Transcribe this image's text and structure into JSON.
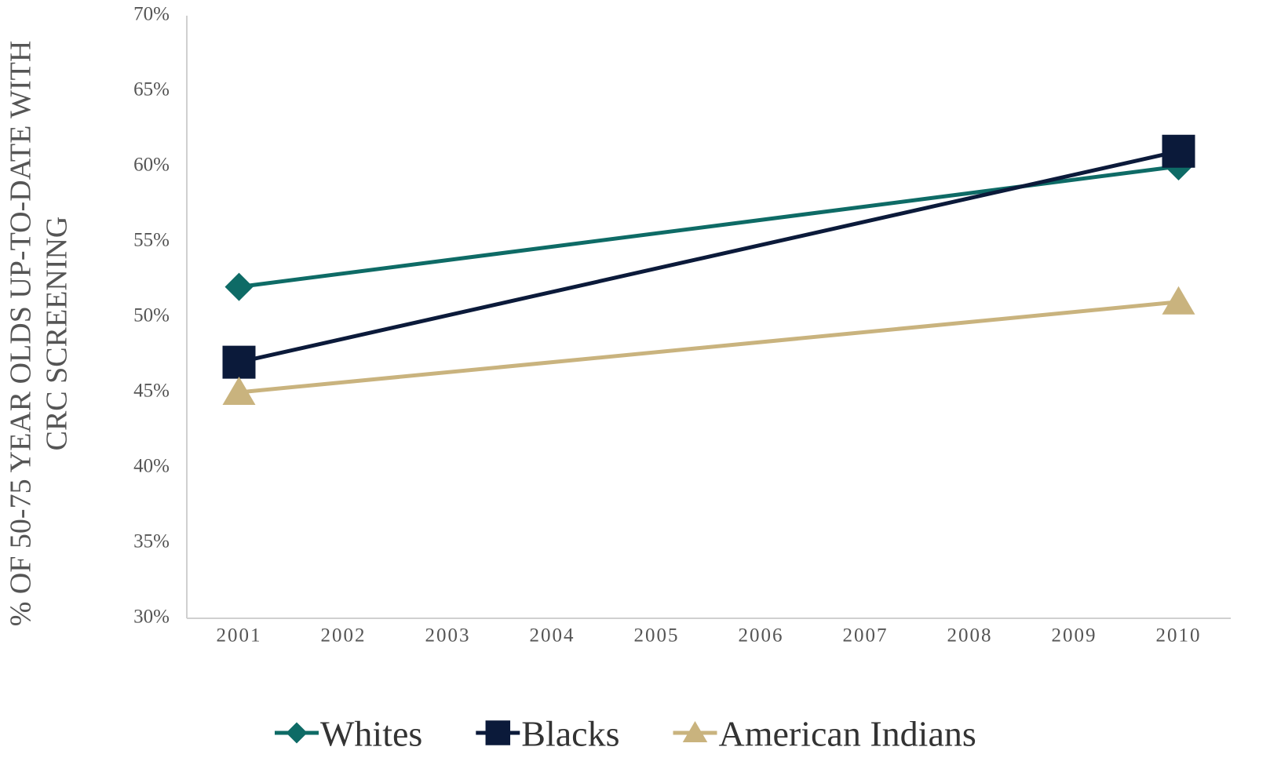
{
  "chart_data": {
    "type": "line",
    "ylabel": [
      "% OF 50-75 YEAR OLDS UP-TO-DATE WITH",
      "CRC SCREENING"
    ],
    "x": [
      2001,
      2010
    ],
    "xlim": [
      2000.5,
      2010.5
    ],
    "xticks": [
      2001,
      2002,
      2003,
      2004,
      2005,
      2006,
      2007,
      2008,
      2009,
      2010
    ],
    "ylim": [
      30,
      70
    ],
    "yticks": [
      {
        "value": 30,
        "label": "30%"
      },
      {
        "value": 35,
        "label": "35%"
      },
      {
        "value": 40,
        "label": "40%"
      },
      {
        "value": 45,
        "label": "45%"
      },
      {
        "value": 50,
        "label": "50%"
      },
      {
        "value": 55,
        "label": "55%"
      },
      {
        "value": 60,
        "label": "60%"
      },
      {
        "value": 65,
        "label": "65%"
      },
      {
        "value": 70,
        "label": "70%"
      }
    ],
    "grid": false,
    "legend": "bottom",
    "series": [
      {
        "name": "Whites",
        "color": "#0e6b66",
        "marker": "diamond",
        "values": [
          52,
          60
        ]
      },
      {
        "name": "Blacks",
        "color": "#0b1a3a",
        "marker": "square",
        "values": [
          47,
          61
        ]
      },
      {
        "name": "American Indians",
        "color": "#c9b37e",
        "marker": "triangle",
        "values": [
          45,
          51
        ]
      }
    ]
  }
}
